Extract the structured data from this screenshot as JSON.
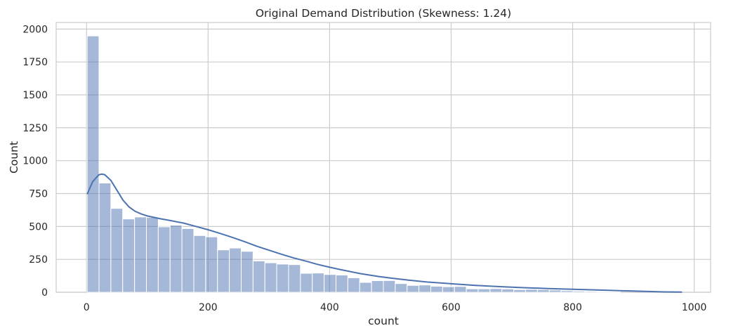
{
  "chart_data": {
    "type": "bar",
    "title": "Original Demand Distribution (Skewness: 1.24)",
    "xlabel": "count",
    "ylabel": "Count",
    "xlim": [
      -50,
      1027
    ],
    "ylim": [
      0,
      2050
    ],
    "xticks": [
      0,
      200,
      400,
      600,
      800,
      1000
    ],
    "yticks": [
      0,
      250,
      500,
      750,
      1000,
      1250,
      1500,
      1750,
      2000
    ],
    "grid": true,
    "bar_color": "#4c72b0",
    "line_color": "#4c72b0",
    "bins": {
      "start": 1,
      "width": 19.5,
      "values": [
        1948,
        830,
        637,
        557,
        572,
        569,
        497,
        510,
        484,
        431,
        421,
        322,
        336,
        311,
        238,
        224,
        214,
        210,
        144,
        146,
        135,
        131,
        110,
        75,
        88,
        89,
        66,
        52,
        55,
        46,
        42,
        44,
        26,
        26,
        28,
        25,
        20,
        22,
        20,
        17,
        12,
        9,
        7,
        5,
        3
      ]
    },
    "kde": {
      "x": [
        1,
        10,
        20,
        25,
        30,
        40,
        50,
        60,
        70,
        80,
        90,
        100,
        120,
        140,
        160,
        180,
        200,
        220,
        240,
        260,
        280,
        300,
        320,
        340,
        360,
        380,
        400,
        420,
        450,
        480,
        500,
        530,
        560,
        600,
        640,
        680,
        720,
        760,
        800,
        850,
        900,
        950,
        980
      ],
      "y": [
        745,
        840,
        892,
        898,
        893,
        850,
        775,
        700,
        648,
        615,
        595,
        580,
        560,
        543,
        525,
        500,
        475,
        447,
        417,
        385,
        350,
        320,
        290,
        262,
        238,
        212,
        190,
        170,
        142,
        120,
        108,
        92,
        78,
        65,
        52,
        43,
        35,
        28,
        23,
        16,
        9,
        3,
        1
      ]
    }
  }
}
